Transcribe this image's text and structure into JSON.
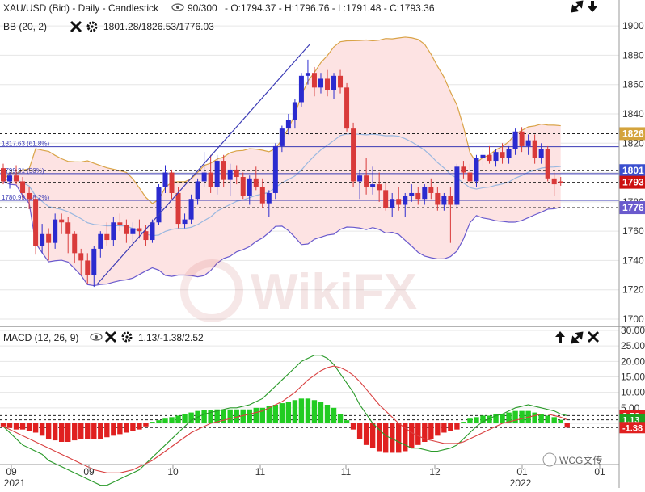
{
  "header": {
    "symbol_line": "XAU/USD (Bid) - Daily - Candlestick",
    "bars": "90/300",
    "ohlc": "- O:1794.37 - H:1796.76 - L:1791.48 - C:1793.36",
    "bb_label": "BB (20, 2)",
    "bb_values": "1801.28/1826.53/1776.03",
    "macd_label": "MACD (12, 26, 9)",
    "macd_values": "1.13/-1.38/2.52",
    "watermark": "WikiFX",
    "wechat": "WCG文传"
  },
  "colors": {
    "up": "#2b2bcf",
    "down": "#d93a3a",
    "bb_fill": "#fde3e3",
    "bb_upper": "#d9a347",
    "bb_lower": "#6a5acd",
    "bb_mid": "#9ab8e0",
    "macd_line": "#2a9a2a",
    "signal_line": "#d94040",
    "hist_pos": "#22cc22",
    "hist_neg": "#e02020"
  },
  "chart_data": [
    {
      "type": "candlestick",
      "ylim": [
        1700,
        1910
      ],
      "y_ticks": [
        "1900",
        "1880",
        "1860",
        "1840",
        "1820",
        "1800",
        "1780",
        "1760",
        "1740",
        "1720",
        "1700"
      ],
      "x_ticks": [
        "09",
        "09",
        "10",
        "11",
        "11",
        "12",
        "01",
        "01"
      ],
      "x_years": [
        "2021",
        "2022"
      ],
      "tags": [
        {
          "label": "1826",
          "value": 1826.53,
          "color": "#d4a33c"
        },
        {
          "label": "1801",
          "value": 1801.28,
          "color": "#3a4fcf"
        },
        {
          "label": "1793",
          "value": 1793.36,
          "color": "#cc1111"
        },
        {
          "label": "1776",
          "value": 1776.03,
          "color": "#6a5acd"
        }
      ],
      "fib_levels": [
        {
          "label": "1817.63 (61.8%)",
          "value": 1817.63
        },
        {
          "label": "1799.31 (50%)",
          "value": 1799.31
        },
        {
          "label": "1780.99 (38.2%)",
          "value": 1780.99
        }
      ],
      "candles": [
        {
          "o": 1803,
          "h": 1806,
          "l": 1792,
          "c": 1794
        },
        {
          "o": 1794,
          "h": 1800,
          "l": 1789,
          "c": 1798
        },
        {
          "o": 1798,
          "h": 1805,
          "l": 1792,
          "c": 1794
        },
        {
          "o": 1794,
          "h": 1797,
          "l": 1782,
          "c": 1786
        },
        {
          "o": 1786,
          "h": 1790,
          "l": 1775,
          "c": 1782
        },
        {
          "o": 1782,
          "h": 1784,
          "l": 1744,
          "c": 1750
        },
        {
          "o": 1750,
          "h": 1765,
          "l": 1745,
          "c": 1758
        },
        {
          "o": 1758,
          "h": 1762,
          "l": 1740,
          "c": 1752
        },
        {
          "o": 1752,
          "h": 1772,
          "l": 1748,
          "c": 1768
        },
        {
          "o": 1768,
          "h": 1772,
          "l": 1758,
          "c": 1766
        },
        {
          "o": 1766,
          "h": 1770,
          "l": 1745,
          "c": 1758
        },
        {
          "o": 1758,
          "h": 1760,
          "l": 1738,
          "c": 1745
        },
        {
          "o": 1745,
          "h": 1748,
          "l": 1730,
          "c": 1740
        },
        {
          "o": 1740,
          "h": 1745,
          "l": 1724,
          "c": 1730
        },
        {
          "o": 1730,
          "h": 1750,
          "l": 1722,
          "c": 1748
        },
        {
          "o": 1748,
          "h": 1760,
          "l": 1742,
          "c": 1758
        },
        {
          "o": 1758,
          "h": 1766,
          "l": 1750,
          "c": 1754
        },
        {
          "o": 1754,
          "h": 1770,
          "l": 1750,
          "c": 1766
        },
        {
          "o": 1766,
          "h": 1772,
          "l": 1760,
          "c": 1764
        },
        {
          "o": 1764,
          "h": 1768,
          "l": 1752,
          "c": 1758
        },
        {
          "o": 1758,
          "h": 1766,
          "l": 1752,
          "c": 1762
        },
        {
          "o": 1762,
          "h": 1768,
          "l": 1755,
          "c": 1760
        },
        {
          "o": 1760,
          "h": 1764,
          "l": 1750,
          "c": 1754
        },
        {
          "o": 1754,
          "h": 1768,
          "l": 1752,
          "c": 1766
        },
        {
          "o": 1766,
          "h": 1792,
          "l": 1764,
          "c": 1790
        },
        {
          "o": 1790,
          "h": 1805,
          "l": 1786,
          "c": 1800
        },
        {
          "o": 1800,
          "h": 1802,
          "l": 1782,
          "c": 1786
        },
        {
          "o": 1786,
          "h": 1790,
          "l": 1762,
          "c": 1765
        },
        {
          "o": 1765,
          "h": 1772,
          "l": 1762,
          "c": 1768
        },
        {
          "o": 1768,
          "h": 1785,
          "l": 1765,
          "c": 1782
        },
        {
          "o": 1782,
          "h": 1796,
          "l": 1778,
          "c": 1794
        },
        {
          "o": 1794,
          "h": 1814,
          "l": 1790,
          "c": 1800
        },
        {
          "o": 1800,
          "h": 1812,
          "l": 1786,
          "c": 1790
        },
        {
          "o": 1790,
          "h": 1812,
          "l": 1785,
          "c": 1808
        },
        {
          "o": 1808,
          "h": 1812,
          "l": 1790,
          "c": 1795
        },
        {
          "o": 1795,
          "h": 1806,
          "l": 1784,
          "c": 1802
        },
        {
          "o": 1802,
          "h": 1805,
          "l": 1792,
          "c": 1797
        },
        {
          "o": 1797,
          "h": 1800,
          "l": 1782,
          "c": 1784
        },
        {
          "o": 1784,
          "h": 1798,
          "l": 1778,
          "c": 1796
        },
        {
          "o": 1796,
          "h": 1804,
          "l": 1788,
          "c": 1790
        },
        {
          "o": 1790,
          "h": 1796,
          "l": 1776,
          "c": 1779
        },
        {
          "o": 1779,
          "h": 1788,
          "l": 1770,
          "c": 1786
        },
        {
          "o": 1786,
          "h": 1820,
          "l": 1782,
          "c": 1818
        },
        {
          "o": 1818,
          "h": 1832,
          "l": 1814,
          "c": 1830
        },
        {
          "o": 1830,
          "h": 1840,
          "l": 1826,
          "c": 1836
        },
        {
          "o": 1836,
          "h": 1850,
          "l": 1830,
          "c": 1848
        },
        {
          "o": 1848,
          "h": 1868,
          "l": 1845,
          "c": 1866
        },
        {
          "o": 1866,
          "h": 1877,
          "l": 1860,
          "c": 1868
        },
        {
          "o": 1868,
          "h": 1872,
          "l": 1852,
          "c": 1858
        },
        {
          "o": 1858,
          "h": 1868,
          "l": 1854,
          "c": 1864
        },
        {
          "o": 1864,
          "h": 1870,
          "l": 1852,
          "c": 1856
        },
        {
          "o": 1856,
          "h": 1868,
          "l": 1850,
          "c": 1866
        },
        {
          "o": 1866,
          "h": 1870,
          "l": 1854,
          "c": 1858
        },
        {
          "o": 1858,
          "h": 1861,
          "l": 1828,
          "c": 1830
        },
        {
          "o": 1830,
          "h": 1834,
          "l": 1790,
          "c": 1794
        },
        {
          "o": 1794,
          "h": 1802,
          "l": 1782,
          "c": 1798
        },
        {
          "o": 1798,
          "h": 1810,
          "l": 1785,
          "c": 1790
        },
        {
          "o": 1790,
          "h": 1804,
          "l": 1785,
          "c": 1792
        },
        {
          "o": 1792,
          "h": 1800,
          "l": 1780,
          "c": 1788
        },
        {
          "o": 1788,
          "h": 1793,
          "l": 1774,
          "c": 1776
        },
        {
          "o": 1776,
          "h": 1786,
          "l": 1770,
          "c": 1782
        },
        {
          "o": 1782,
          "h": 1790,
          "l": 1774,
          "c": 1778
        },
        {
          "o": 1778,
          "h": 1786,
          "l": 1770,
          "c": 1784
        },
        {
          "o": 1784,
          "h": 1792,
          "l": 1780,
          "c": 1786
        },
        {
          "o": 1786,
          "h": 1790,
          "l": 1778,
          "c": 1782
        },
        {
          "o": 1782,
          "h": 1792,
          "l": 1778,
          "c": 1790
        },
        {
          "o": 1790,
          "h": 1796,
          "l": 1782,
          "c": 1786
        },
        {
          "o": 1786,
          "h": 1790,
          "l": 1774,
          "c": 1778
        },
        {
          "o": 1778,
          "h": 1786,
          "l": 1774,
          "c": 1784
        },
        {
          "o": 1784,
          "h": 1790,
          "l": 1752,
          "c": 1778
        },
        {
          "o": 1778,
          "h": 1806,
          "l": 1775,
          "c": 1804
        },
        {
          "o": 1804,
          "h": 1808,
          "l": 1796,
          "c": 1800
        },
        {
          "o": 1800,
          "h": 1806,
          "l": 1792,
          "c": 1794
        },
        {
          "o": 1794,
          "h": 1812,
          "l": 1790,
          "c": 1810
        },
        {
          "o": 1810,
          "h": 1816,
          "l": 1804,
          "c": 1812
        },
        {
          "o": 1812,
          "h": 1818,
          "l": 1806,
          "c": 1808
        },
        {
          "o": 1808,
          "h": 1816,
          "l": 1804,
          "c": 1814
        },
        {
          "o": 1814,
          "h": 1820,
          "l": 1806,
          "c": 1810
        },
        {
          "o": 1810,
          "h": 1818,
          "l": 1806,
          "c": 1816
        },
        {
          "o": 1816,
          "h": 1830,
          "l": 1812,
          "c": 1828
        },
        {
          "o": 1828,
          "h": 1831,
          "l": 1814,
          "c": 1818
        },
        {
          "o": 1818,
          "h": 1826,
          "l": 1812,
          "c": 1822
        },
        {
          "o": 1822,
          "h": 1826,
          "l": 1806,
          "c": 1810
        },
        {
          "o": 1810,
          "h": 1820,
          "l": 1806,
          "c": 1816
        },
        {
          "o": 1816,
          "h": 1818,
          "l": 1794,
          "c": 1796
        },
        {
          "o": 1796,
          "h": 1800,
          "l": 1784,
          "c": 1792
        },
        {
          "o": 1794,
          "h": 1797,
          "l": 1791,
          "c": 1793
        }
      ]
    },
    {
      "type": "macd",
      "ylim": [
        -12,
        30
      ],
      "y_ticks": [
        "30.00",
        "25.00",
        "20.00",
        "15.00",
        "10.00",
        "5.00",
        "0.00"
      ],
      "tags": [
        {
          "label": "2.52",
          "value": 2.52,
          "color": "#e02020"
        },
        {
          "label": "1.13",
          "value": 1.13,
          "color": "#20a020"
        },
        {
          "label": "-1.38",
          "value": -1.38,
          "color": "#e02020"
        }
      ],
      "histogram": [
        -1,
        -1.5,
        -2,
        -2,
        -2.5,
        -3,
        -4,
        -5,
        -5.5,
        -6,
        -6,
        -5.5,
        -5,
        -5,
        -5,
        -5,
        -4.5,
        -4,
        -3.5,
        -3,
        -2.5,
        -2,
        -1,
        0.5,
        1,
        1.5,
        2,
        2.5,
        3,
        3.5,
        4,
        4.2,
        4.2,
        4.5,
        4.5,
        4.5,
        4.5,
        4.5,
        4.5,
        5,
        5,
        5.5,
        6,
        6.5,
        7,
        7.5,
        8,
        8,
        7.5,
        7,
        6,
        5,
        3,
        1,
        -2,
        -5,
        -7,
        -8,
        -9,
        -9.5,
        -9.5,
        -9.5,
        -9,
        -8,
        -7,
        -6,
        -5,
        -4,
        -3,
        -2.5,
        -2,
        0.5,
        1.5,
        2,
        2.5,
        2.5,
        3,
        3,
        3.5,
        4,
        4,
        4,
        3.5,
        3,
        2.5,
        2,
        1.13,
        -1.38
      ],
      "macd_line": [
        -1,
        -3,
        -5,
        -7,
        -8,
        -9,
        -10,
        -12,
        -13,
        -14,
        -15,
        -16,
        -17,
        -18,
        -19,
        -20,
        -20,
        -19,
        -18,
        -17,
        -16,
        -15,
        -13,
        -11,
        -9,
        -7,
        -5,
        -3,
        -1,
        1,
        2,
        3,
        3.5,
        4,
        4.5,
        5,
        5,
        5.5,
        6,
        7,
        8,
        10,
        12,
        14,
        16,
        18,
        20,
        21,
        22,
        22,
        21,
        19,
        16,
        13,
        10,
        6,
        3,
        0,
        -2,
        -4,
        -5,
        -6,
        -7,
        -8,
        -8,
        -8.5,
        -9,
        -9,
        -8.5,
        -8,
        -7,
        -5,
        -3,
        -1,
        0.5,
        1.5,
        2.5,
        3,
        4,
        5,
        5.5,
        6,
        5.5,
        5,
        4.5,
        4,
        3,
        2.5
      ],
      "signal_line": [
        -1,
        -2,
        -3,
        -4,
        -5,
        -6,
        -7,
        -8,
        -9,
        -10,
        -11,
        -12,
        -13,
        -14,
        -15,
        -15.5,
        -16,
        -16,
        -16,
        -15.5,
        -15,
        -14,
        -13,
        -12,
        -10.5,
        -9,
        -7.5,
        -6,
        -4.5,
        -3,
        -2,
        -1,
        0,
        0.5,
        1,
        1.5,
        2,
        2.5,
        3,
        3.5,
        4,
        5,
        6,
        7,
        8.5,
        10,
        12,
        14,
        15.5,
        17,
        18,
        18.5,
        18,
        17,
        15.5,
        13.5,
        11,
        8.5,
        6,
        4,
        2,
        0,
        -1.5,
        -3,
        -4,
        -5,
        -5.5,
        -6,
        -6.5,
        -6.5,
        -6.5,
        -6,
        -5,
        -4,
        -3,
        -2,
        -1,
        0,
        0.5,
        1,
        1.5,
        2,
        2.5,
        3,
        3,
        2.5,
        2,
        1.13
      ]
    }
  ]
}
